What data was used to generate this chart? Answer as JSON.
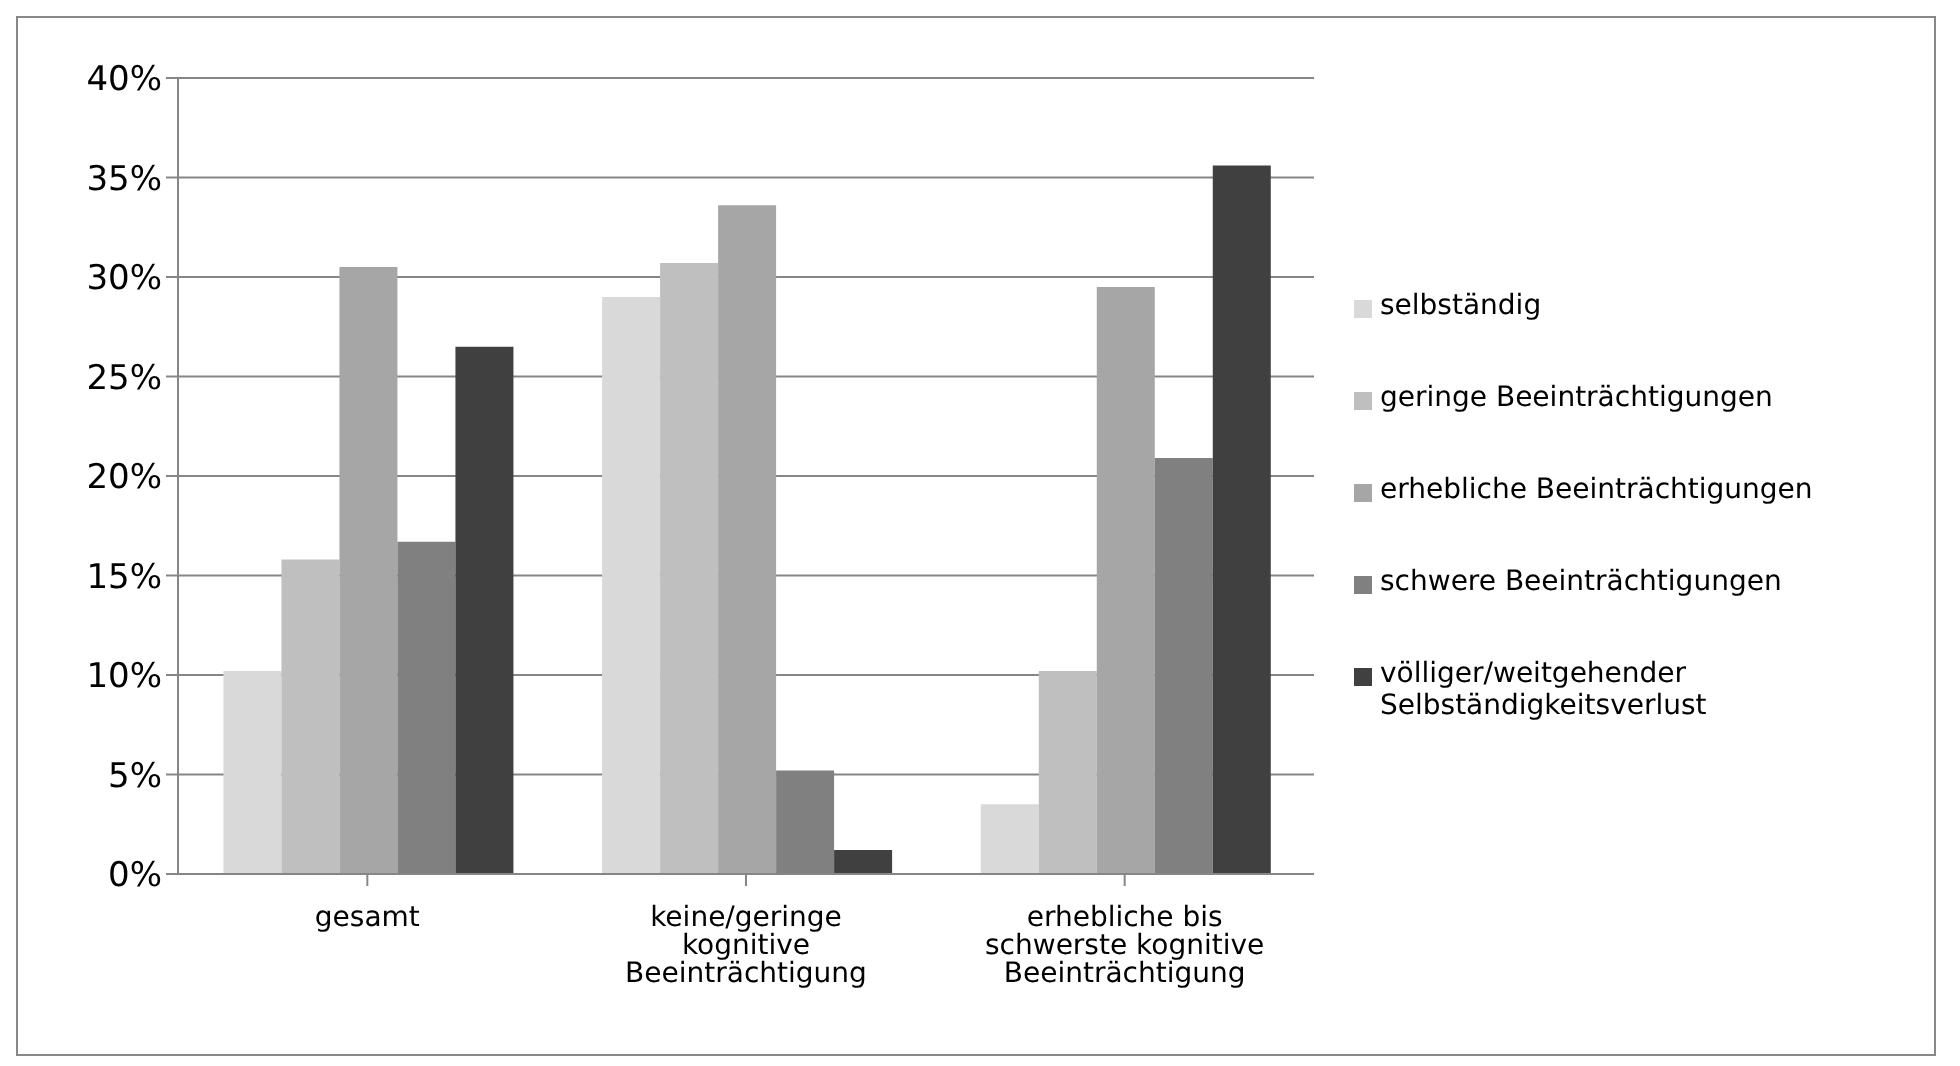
{
  "chart_data": {
    "type": "bar",
    "categories": [
      "gesamt",
      "keine/geringe kognitive Beeinträchtigung",
      "erhebliche bis schwerste kognitive Beeinträchtigung"
    ],
    "series": [
      {
        "name": "selbständig",
        "color": "#d9d9d9",
        "values": [
          10.2,
          29.0,
          3.5
        ]
      },
      {
        "name": "geringe Beeinträchtigungen",
        "color": "#bfbfbf",
        "values": [
          15.8,
          30.7,
          10.2
        ]
      },
      {
        "name": "erhebliche Beeinträchtigungen",
        "color": "#a6a6a6",
        "values": [
          30.5,
          33.6,
          29.5
        ]
      },
      {
        "name": "schwere Beeinträchtigungen",
        "color": "#808080",
        "values": [
          16.7,
          5.2,
          20.9
        ]
      },
      {
        "name": "völliger/weitgehender Selbständigkeitsverlust",
        "color": "#404040",
        "values": [
          26.5,
          1.2,
          35.6
        ]
      }
    ],
    "ylim": [
      0,
      40
    ],
    "yticks": [
      {
        "value": 0,
        "label": "0%"
      },
      {
        "value": 5,
        "label": "5%"
      },
      {
        "value": 10,
        "label": "10%"
      },
      {
        "value": 15,
        "label": "15%"
      },
      {
        "value": 20,
        "label": "20%"
      },
      {
        "value": 25,
        "label": "25%"
      },
      {
        "value": 30,
        "label": "30%"
      },
      {
        "value": 35,
        "label": "35%"
      },
      {
        "value": 40,
        "label": "40%"
      }
    ],
    "grid": "y",
    "legend": "right"
  }
}
